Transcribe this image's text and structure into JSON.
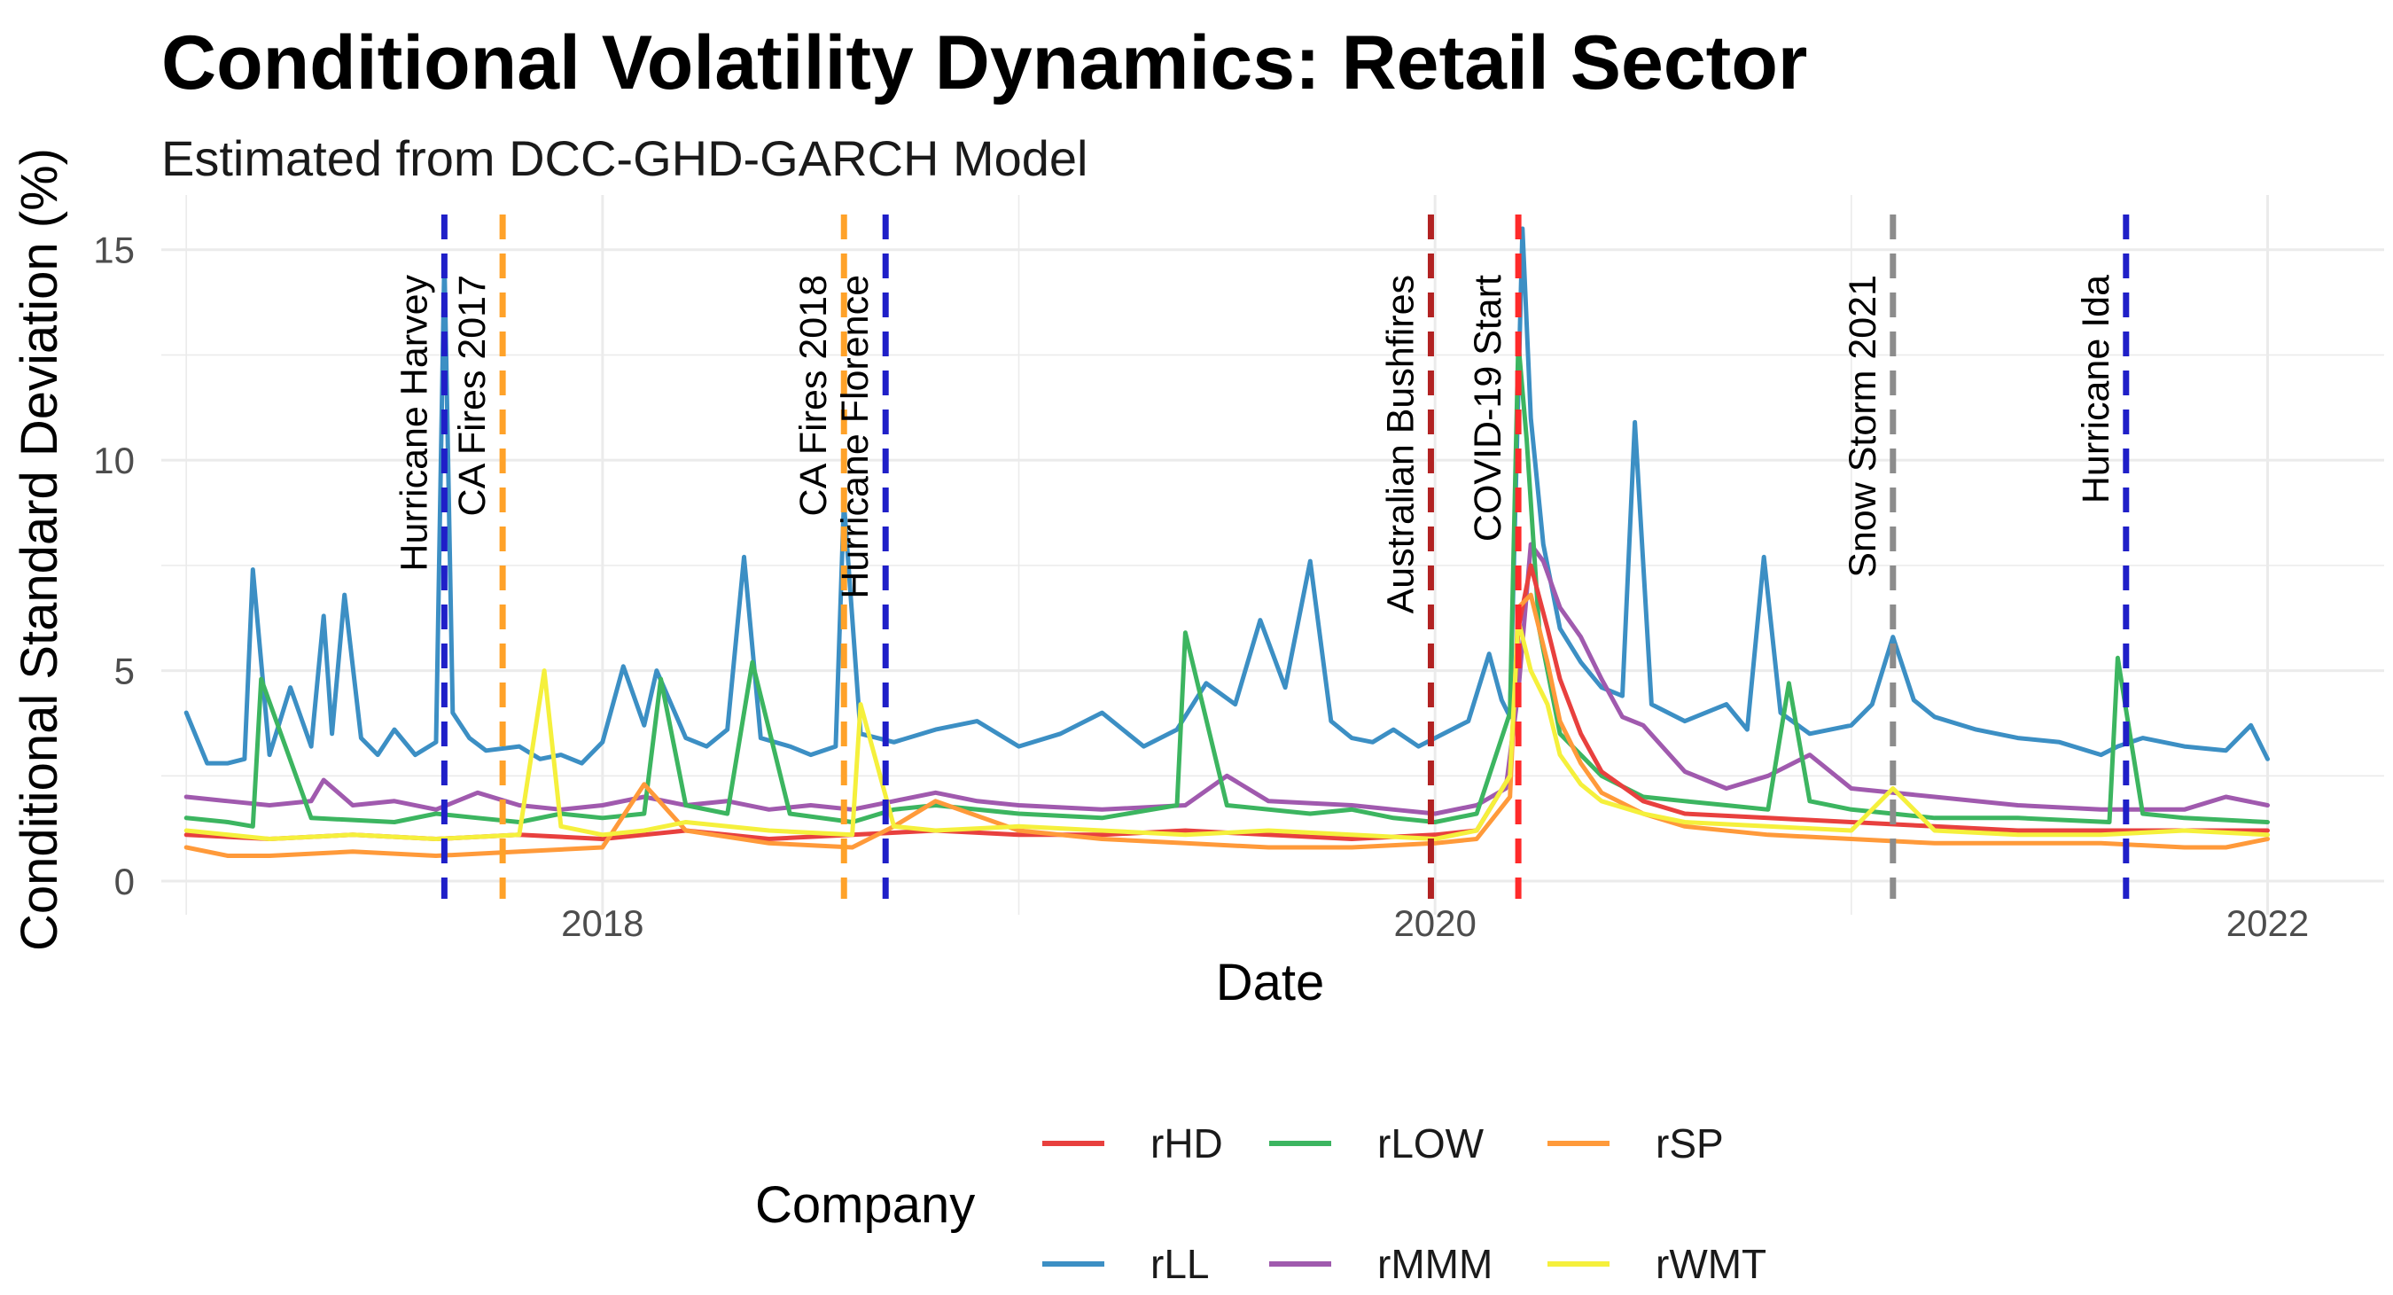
{
  "chart_data": {
    "type": "line",
    "title": "Conditional Volatility Dynamics: Retail Sector",
    "subtitle": "Estimated from DCC-GHD-GARCH Model",
    "xlabel": "Date",
    "ylabel": "Conditional Standard Deviation (%)",
    "xlim": [
      2016.94,
      2022.28
    ],
    "ylim": [
      -0.8,
      16.3
    ],
    "x_ticks": [
      {
        "value": 2018,
        "label": "2018"
      },
      {
        "value": 2020,
        "label": "2020"
      },
      {
        "value": 2022,
        "label": "2022"
      }
    ],
    "y_ticks": [
      {
        "value": 0,
        "label": "0"
      },
      {
        "value": 5,
        "label": "5"
      },
      {
        "value": 10,
        "label": "10"
      },
      {
        "value": 15,
        "label": "15"
      }
    ],
    "grid": true,
    "events": [
      {
        "label": "Hurricane Harvey",
        "date": 2017.62,
        "color": "#1f1fc8"
      },
      {
        "label": "CA Fires 2017",
        "date": 2017.76,
        "color": "#ffa229"
      },
      {
        "label": "CA Fires 2018",
        "date": 2018.58,
        "color": "#ffa229"
      },
      {
        "label": "Hurricane Florence",
        "date": 2018.68,
        "color": "#1f1fc8"
      },
      {
        "label": "Australian Bushfires",
        "date": 2019.99,
        "color": "#b22222"
      },
      {
        "label": "COVID-19 Start",
        "date": 2020.2,
        "color": "#ff2a2a"
      },
      {
        "label": "Snow Storm 2021",
        "date": 2021.1,
        "color": "#8c8c8c"
      },
      {
        "label": "Hurricane Ida",
        "date": 2021.66,
        "color": "#1f1fc8"
      }
    ],
    "legend": {
      "title": "Company",
      "position": "bottom",
      "entries": [
        "rHD",
        "rLOW",
        "rSP",
        "rLL",
        "rMMM",
        "rWMT"
      ]
    },
    "series": [
      {
        "name": "rLL",
        "color": "#3c8fc4",
        "x": [
          2017.0,
          2017.05,
          2017.1,
          2017.14,
          2017.16,
          2017.2,
          2017.25,
          2017.3,
          2017.33,
          2017.35,
          2017.38,
          2017.42,
          2017.46,
          2017.5,
          2017.55,
          2017.6,
          2017.62,
          2017.64,
          2017.68,
          2017.72,
          2017.8,
          2017.85,
          2017.9,
          2017.95,
          2018.0,
          2018.05,
          2018.1,
          2018.13,
          2018.2,
          2018.25,
          2018.3,
          2018.34,
          2018.38,
          2018.45,
          2018.5,
          2018.56,
          2018.58,
          2018.62,
          2018.7,
          2018.8,
          2018.9,
          2019.0,
          2019.1,
          2019.2,
          2019.3,
          2019.38,
          2019.45,
          2019.52,
          2019.58,
          2019.64,
          2019.7,
          2019.75,
          2019.8,
          2019.85,
          2019.9,
          2019.96,
          2020.0,
          2020.08,
          2020.13,
          2020.16,
          2020.18,
          2020.21,
          2020.23,
          2020.26,
          2020.3,
          2020.35,
          2020.4,
          2020.45,
          2020.48,
          2020.52,
          2020.6,
          2020.7,
          2020.75,
          2020.79,
          2020.83,
          2020.9,
          2021.0,
          2021.05,
          2021.1,
          2021.15,
          2021.2,
          2021.3,
          2021.4,
          2021.5,
          2021.6,
          2021.64,
          2021.7,
          2021.8,
          2021.9,
          2021.96,
          2022.0
        ],
        "y": [
          4.0,
          2.8,
          2.8,
          2.9,
          7.4,
          3.0,
          4.6,
          3.2,
          6.3,
          3.5,
          6.8,
          3.4,
          3.0,
          3.6,
          3.0,
          3.3,
          14.8,
          4.0,
          3.4,
          3.1,
          3.2,
          2.9,
          3.0,
          2.8,
          3.3,
          5.1,
          3.7,
          5.0,
          3.4,
          3.2,
          3.6,
          7.7,
          3.4,
          3.2,
          3.0,
          3.2,
          9.0,
          3.5,
          3.3,
          3.6,
          3.8,
          3.2,
          3.5,
          4.0,
          3.2,
          3.6,
          4.7,
          4.2,
          6.2,
          4.6,
          7.6,
          3.8,
          3.4,
          3.3,
          3.6,
          3.2,
          3.4,
          3.8,
          5.4,
          4.3,
          3.9,
          15.5,
          11.0,
          8.0,
          6.0,
          5.2,
          4.6,
          4.4,
          10.9,
          4.2,
          3.8,
          4.2,
          3.6,
          7.7,
          4.0,
          3.5,
          3.7,
          4.2,
          5.8,
          4.3,
          3.9,
          3.6,
          3.4,
          3.3,
          3.0,
          3.2,
          3.4,
          3.2,
          3.1,
          3.7,
          2.9
        ]
      },
      {
        "name": "rMMM",
        "color": "#a05aae",
        "x": [
          2017.0,
          2017.1,
          2017.2,
          2017.3,
          2017.33,
          2017.4,
          2017.5,
          2017.6,
          2017.7,
          2017.8,
          2017.9,
          2018.0,
          2018.1,
          2018.2,
          2018.3,
          2018.4,
          2018.5,
          2018.6,
          2018.7,
          2018.8,
          2018.9,
          2019.0,
          2019.2,
          2019.4,
          2019.5,
          2019.6,
          2019.8,
          2019.9,
          2020.0,
          2020.1,
          2020.17,
          2020.2,
          2020.23,
          2020.26,
          2020.3,
          2020.35,
          2020.4,
          2020.45,
          2020.5,
          2020.6,
          2020.7,
          2020.8,
          2020.9,
          2021.0,
          2021.2,
          2021.4,
          2021.6,
          2021.8,
          2021.9,
          2022.0
        ],
        "y": [
          2.0,
          1.9,
          1.8,
          1.9,
          2.4,
          1.8,
          1.9,
          1.7,
          2.1,
          1.8,
          1.7,
          1.8,
          2.0,
          1.8,
          1.9,
          1.7,
          1.8,
          1.7,
          1.9,
          2.1,
          1.9,
          1.8,
          1.7,
          1.8,
          2.5,
          1.9,
          1.8,
          1.7,
          1.6,
          1.8,
          2.2,
          4.5,
          8.0,
          7.6,
          6.5,
          5.8,
          4.8,
          3.9,
          3.7,
          2.6,
          2.2,
          2.5,
          3.0,
          2.2,
          2.0,
          1.8,
          1.7,
          1.7,
          2.0,
          1.8
        ]
      },
      {
        "name": "rLOW",
        "color": "#3cb560",
        "x": [
          2017.0,
          2017.1,
          2017.16,
          2017.18,
          2017.3,
          2017.5,
          2017.6,
          2017.7,
          2017.8,
          2017.9,
          2018.0,
          2018.1,
          2018.14,
          2018.2,
          2018.3,
          2018.36,
          2018.45,
          2018.6,
          2018.7,
          2018.8,
          2019.0,
          2019.2,
          2019.38,
          2019.4,
          2019.5,
          2019.7,
          2019.8,
          2019.9,
          2020.0,
          2020.1,
          2020.18,
          2020.2,
          2020.22,
          2020.25,
          2020.3,
          2020.4,
          2020.5,
          2020.6,
          2020.7,
          2020.8,
          2020.85,
          2020.9,
          2021.0,
          2021.1,
          2021.2,
          2021.4,
          2021.62,
          2021.64,
          2021.7,
          2021.8,
          2022.0
        ],
        "y": [
          1.5,
          1.4,
          1.3,
          4.8,
          1.5,
          1.4,
          1.6,
          1.5,
          1.4,
          1.6,
          1.5,
          1.6,
          4.8,
          1.8,
          1.6,
          5.2,
          1.6,
          1.4,
          1.7,
          1.8,
          1.6,
          1.5,
          1.8,
          5.9,
          1.8,
          1.6,
          1.7,
          1.5,
          1.4,
          1.6,
          4.0,
          12.8,
          10.5,
          6.0,
          3.5,
          2.5,
          2.0,
          1.9,
          1.8,
          1.7,
          4.7,
          1.9,
          1.7,
          1.6,
          1.5,
          1.5,
          1.4,
          5.3,
          1.6,
          1.5,
          1.4
        ]
      },
      {
        "name": "rHD",
        "color": "#e8403e",
        "x": [
          2017.0,
          2017.2,
          2017.4,
          2017.6,
          2017.8,
          2018.0,
          2018.2,
          2018.4,
          2018.6,
          2018.8,
          2019.0,
          2019.2,
          2019.4,
          2019.6,
          2019.8,
          2020.0,
          2020.1,
          2020.18,
          2020.2,
          2020.23,
          2020.27,
          2020.3,
          2020.35,
          2020.4,
          2020.5,
          2020.6,
          2020.8,
          2021.0,
          2021.2,
          2021.4,
          2021.6,
          2021.8,
          2022.0
        ],
        "y": [
          1.1,
          1.0,
          1.1,
          1.0,
          1.1,
          1.0,
          1.2,
          1.0,
          1.1,
          1.2,
          1.1,
          1.1,
          1.2,
          1.1,
          1.0,
          1.1,
          1.2,
          2.5,
          6.0,
          7.5,
          6.0,
          4.8,
          3.5,
          2.6,
          1.9,
          1.6,
          1.5,
          1.4,
          1.3,
          1.2,
          1.2,
          1.2,
          1.2
        ]
      },
      {
        "name": "rSP",
        "color": "#ff9a3a",
        "x": [
          2017.0,
          2017.1,
          2017.2,
          2017.4,
          2017.6,
          2017.8,
          2018.0,
          2018.1,
          2018.2,
          2018.4,
          2018.6,
          2018.7,
          2018.8,
          2019.0,
          2019.2,
          2019.4,
          2019.6,
          2019.8,
          2020.0,
          2020.1,
          2020.18,
          2020.2,
          2020.23,
          2020.27,
          2020.3,
          2020.35,
          2020.4,
          2020.5,
          2020.6,
          2020.8,
          2021.0,
          2021.2,
          2021.4,
          2021.6,
          2021.8,
          2021.9,
          2022.0
        ],
        "y": [
          0.8,
          0.6,
          0.6,
          0.7,
          0.6,
          0.7,
          0.8,
          2.3,
          1.2,
          0.9,
          0.8,
          1.3,
          1.9,
          1.2,
          1.0,
          0.9,
          0.8,
          0.8,
          0.9,
          1.0,
          2.0,
          6.5,
          6.8,
          5.2,
          3.8,
          2.8,
          2.1,
          1.6,
          1.3,
          1.1,
          1.0,
          0.9,
          0.9,
          0.9,
          0.8,
          0.8,
          1.0
        ]
      },
      {
        "name": "rWMT",
        "color": "#f5f03c",
        "x": [
          2017.0,
          2017.2,
          2017.4,
          2017.6,
          2017.8,
          2017.86,
          2017.9,
          2018.0,
          2018.1,
          2018.2,
          2018.4,
          2018.6,
          2018.62,
          2018.7,
          2018.8,
          2019.0,
          2019.2,
          2019.4,
          2019.6,
          2019.8,
          2020.0,
          2020.1,
          2020.18,
          2020.2,
          2020.23,
          2020.27,
          2020.3,
          2020.35,
          2020.4,
          2020.5,
          2020.6,
          2020.8,
          2021.0,
          2021.1,
          2021.2,
          2021.4,
          2021.6,
          2021.8,
          2022.0
        ],
        "y": [
          1.2,
          1.0,
          1.1,
          1.0,
          1.1,
          5.0,
          1.3,
          1.1,
          1.2,
          1.4,
          1.2,
          1.1,
          4.2,
          1.3,
          1.2,
          1.3,
          1.2,
          1.1,
          1.2,
          1.1,
          1.0,
          1.2,
          2.5,
          6.2,
          5.0,
          4.2,
          3.0,
          2.3,
          1.9,
          1.6,
          1.4,
          1.3,
          1.2,
          2.2,
          1.2,
          1.1,
          1.1,
          1.2,
          1.1
        ]
      }
    ]
  }
}
